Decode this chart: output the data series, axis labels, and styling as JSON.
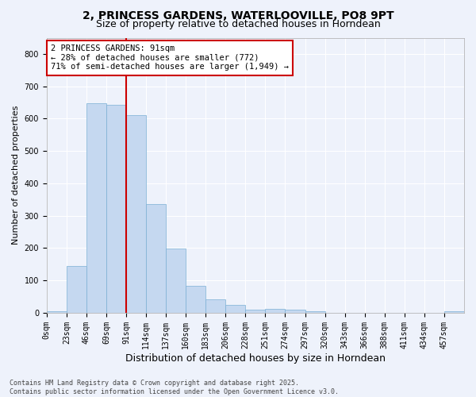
{
  "title_line1": "2, PRINCESS GARDENS, WATERLOOVILLE, PO8 9PT",
  "title_line2": "Size of property relative to detached houses in Horndean",
  "xlabel": "Distribution of detached houses by size in Horndean",
  "ylabel": "Number of detached properties",
  "footer_line1": "Contains HM Land Registry data © Crown copyright and database right 2025.",
  "footer_line2": "Contains public sector information licensed under the Open Government Licence v3.0.",
  "annotation_line1": "2 PRINCESS GARDENS: 91sqm",
  "annotation_line2": "← 28% of detached houses are smaller (772)",
  "annotation_line3": "71% of semi-detached houses are larger (1,949) →",
  "bar_labels": [
    "0sqm",
    "23sqm",
    "46sqm",
    "69sqm",
    "91sqm",
    "114sqm",
    "137sqm",
    "160sqm",
    "183sqm",
    "206sqm",
    "228sqm",
    "251sqm",
    "274sqm",
    "297sqm",
    "320sqm",
    "343sqm",
    "366sqm",
    "388sqm",
    "411sqm",
    "434sqm",
    "457sqm"
  ],
  "bar_values": [
    5,
    145,
    648,
    643,
    610,
    335,
    198,
    83,
    42,
    25,
    10,
    13,
    9,
    5,
    0,
    0,
    0,
    0,
    0,
    0,
    5
  ],
  "bar_color": "#c5d8f0",
  "bar_edge_color": "#7bafd4",
  "red_line_index": 4,
  "ylim": [
    0,
    850
  ],
  "yticks": [
    0,
    100,
    200,
    300,
    400,
    500,
    600,
    700,
    800
  ],
  "background_color": "#eef2fb",
  "grid_color": "#ffffff",
  "annotation_box_color": "#ffffff",
  "annotation_box_edge": "#cc0000",
  "red_line_color": "#cc0000",
  "title_fontsize": 10,
  "subtitle_fontsize": 9,
  "axis_label_fontsize": 8,
  "tick_fontsize": 7,
  "annotation_fontsize": 7.5,
  "footer_fontsize": 6
}
